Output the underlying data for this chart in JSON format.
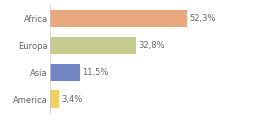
{
  "categories": [
    "Africa",
    "Europa",
    "Asia",
    "America"
  ],
  "values": [
    52.3,
    32.8,
    11.5,
    3.4
  ],
  "labels": [
    "52,3%",
    "32,8%",
    "11,5%",
    "3,4%"
  ],
  "bar_colors": [
    "#e8a97e",
    "#c5cc8e",
    "#7085c2",
    "#f0d060"
  ],
  "background_color": "#ffffff",
  "xlim": [
    0,
    75
  ],
  "label_fontsize": 6.0,
  "category_fontsize": 6.0,
  "text_color": "#666666"
}
